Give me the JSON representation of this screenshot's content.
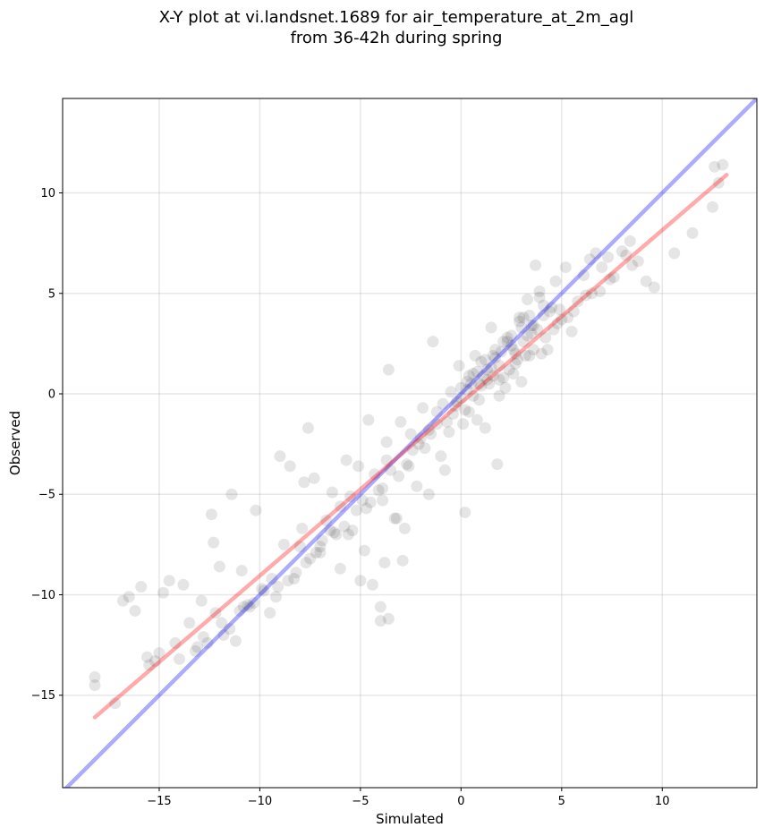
{
  "chart_data": {
    "type": "scatter",
    "title": [
      "X-Y plot at vi.landsnet.1689 for air_temperature_at_2m_agl",
      "from 36-42h during spring"
    ],
    "xlabel": "Simulated",
    "ylabel": "Observed",
    "xlim": [
      -19.8,
      14.7
    ],
    "ylim": [
      -19.6,
      14.7
    ],
    "xticks": [
      -15,
      -10,
      -5,
      0,
      5,
      10
    ],
    "yticks": [
      -15,
      -10,
      -5,
      0,
      5,
      10
    ],
    "xtick_labels": [
      "−15",
      "−10",
      "−5",
      "0",
      "5",
      "10"
    ],
    "ytick_labels": [
      "−15",
      "−10",
      "−5",
      "0",
      "5",
      "10"
    ],
    "grid": true,
    "series": [
      {
        "kind": "points",
        "color": "#000000",
        "x": [
          -18.2,
          -18.2,
          -16.8,
          -17.2,
          -16.5,
          -16.2,
          -15.9,
          -15.6,
          -15.5,
          -15.2,
          -15.0,
          -14.8,
          -14.5,
          -14.2,
          -13.8,
          -13.5,
          -13.2,
          -12.9,
          -12.4,
          -12.3,
          -12.2,
          -12.0,
          -11.8,
          -11.4,
          -11.2,
          -10.9,
          -10.5,
          -10.2,
          -9.8,
          -9.4,
          -9.0,
          -8.8,
          -8.5,
          -8.2,
          -7.9,
          -7.6,
          -7.8,
          -7.3,
          -7.0,
          -6.7,
          -6.4,
          -6.0,
          -5.7,
          -5.4,
          -5.1,
          -4.9,
          -4.6,
          -4.3,
          -4.0,
          -4.0,
          -3.8,
          -3.6,
          -3.3,
          -3.0,
          -2.7,
          -2.5,
          -2.2,
          -1.9,
          -1.6,
          -1.4,
          -1.2,
          -0.9,
          -0.7,
          -0.5,
          -0.3,
          -0.1,
          0.1,
          0.3,
          0.5,
          0.7,
          0.9,
          1.1,
          1.3,
          1.5,
          1.7,
          1.9,
          2.1,
          2.3,
          2.5,
          2.7,
          2.9,
          3.1,
          3.3,
          3.5,
          3.7,
          3.9,
          4.1,
          4.3,
          4.5,
          4.7,
          4.9,
          5.2,
          5.5,
          5.8,
          6.1,
          6.4,
          6.7,
          7.0,
          7.3,
          7.6,
          8.0,
          8.4,
          8.8,
          9.2,
          9.6,
          10.6,
          11.5,
          12.5,
          12.6,
          12.8,
          13.0,
          -3.6,
          -5.0,
          -2.9,
          -1.6,
          0.2,
          1.8,
          -4.4,
          -2.8,
          -0.8,
          0.8,
          2.6,
          -6.0,
          -4.8,
          -3.2,
          -1.0,
          1.2,
          3.0,
          -7.2,
          -5.6,
          -3.9,
          -2.1,
          0.4,
          2.2,
          4.0,
          -9.5,
          -8.0,
          -6.5,
          -5.2,
          -3.5,
          -1.8,
          0.0,
          1.6,
          3.4,
          5.0,
          -10.8,
          -9.2,
          -7.5,
          -6.2,
          -4.5,
          -2.4,
          -0.6,
          1.0,
          2.8,
          4.6,
          6.2,
          -12.8,
          -11.0,
          -9.9,
          -8.6,
          -7.0,
          -5.8,
          -4.1,
          -2.6,
          -1.2,
          0.6,
          2.4,
          4.2,
          5.6,
          7.4,
          -14.0,
          -12.6,
          -11.5,
          -10.3,
          -9.1,
          -7.7,
          -6.3,
          -4.7,
          -3.1,
          -1.5,
          0.2,
          1.9,
          3.6,
          5.3,
          6.9,
          8.5,
          -13.1,
          -11.9,
          -10.6,
          -8.3,
          -6.9,
          -5.5,
          -3.7,
          -2.0,
          -0.4,
          1.4,
          3.2,
          4.8,
          6.5,
          8.2,
          -3.9,
          -3.7,
          0.9,
          1.5,
          2.0,
          2.5,
          3.0,
          3.5,
          0.4,
          0.8,
          1.2,
          1.6,
          2.1,
          2.6,
          3.1,
          3.6,
          4.1,
          -0.2,
          0.3,
          1.0,
          1.7,
          2.3,
          2.9,
          3.4,
          3.9,
          4.4,
          0.0,
          0.6,
          1.3,
          1.9,
          2.7,
          3.3,
          3.8
        ],
        "y": [
          -14.1,
          -14.5,
          -10.3,
          -15.4,
          -10.1,
          -10.8,
          -9.6,
          -13.1,
          -13.5,
          -13.3,
          -12.9,
          -9.9,
          -9.3,
          -12.4,
          -9.5,
          -11.4,
          -12.8,
          -10.3,
          -6.0,
          -7.4,
          -10.9,
          -8.6,
          -12.0,
          -5.0,
          -12.3,
          -8.8,
          -10.6,
          -5.8,
          -9.8,
          -9.2,
          -3.1,
          -7.5,
          -3.6,
          -8.9,
          -6.7,
          -1.7,
          -4.4,
          -4.2,
          -7.6,
          -6.3,
          -4.9,
          -5.6,
          -3.3,
          -6.8,
          -3.6,
          -5.3,
          -1.3,
          -4.0,
          -10.6,
          -11.3,
          -8.4,
          1.2,
          -6.2,
          -1.4,
          -3.5,
          -2.0,
          -4.6,
          -0.7,
          -1.8,
          2.6,
          -0.9,
          -0.5,
          -1.4,
          0.1,
          -0.6,
          1.4,
          -1.5,
          0.2,
          0.5,
          1.9,
          -0.3,
          0.9,
          1.2,
          3.3,
          1.8,
          -0.1,
          0.8,
          2.6,
          2.9,
          1.5,
          3.8,
          2.6,
          4.7,
          3.4,
          6.4,
          5.1,
          3.9,
          2.2,
          4.3,
          5.6,
          4.2,
          6.3,
          3.1,
          4.6,
          5.9,
          6.7,
          7.0,
          6.3,
          6.8,
          5.8,
          7.1,
          7.6,
          6.6,
          5.6,
          5.3,
          7.0,
          8.0,
          9.3,
          11.3,
          10.5,
          11.4,
          -11.2,
          -9.3,
          -8.3,
          -5.0,
          -5.9,
          -3.5,
          -9.5,
          -6.7,
          -3.8,
          -1.3,
          1.0,
          -8.7,
          -7.8,
          -6.2,
          -3.1,
          -1.7,
          0.6,
          -7.9,
          -7.0,
          -5.3,
          -2.5,
          -0.9,
          0.3,
          2.0,
          -10.9,
          -7.6,
          -6.8,
          -5.8,
          -3.8,
          -2.7,
          -0.2,
          0.9,
          1.9,
          3.7,
          -10.6,
          -10.1,
          -8.2,
          -7.0,
          -5.4,
          -2.8,
          -1.9,
          0.4,
          1.7,
          3.2,
          4.9,
          -12.1,
          -10.8,
          -9.7,
          -9.3,
          -7.9,
          -6.6,
          -4.8,
          -3.6,
          -1.5,
          -0.1,
          1.2,
          2.8,
          4.1,
          5.7,
          -13.2,
          -12.4,
          -11.7,
          -10.4,
          -9.6,
          -8.4,
          -6.9,
          -5.7,
          -4.1,
          -2.0,
          -0.8,
          0.7,
          2.2,
          3.8,
          5.1,
          6.4,
          -12.6,
          -11.4,
          -10.5,
          -9.2,
          -7.3,
          -5.1,
          -3.3,
          -2.2,
          -1.0,
          0.5,
          1.9,
          3.5,
          5.0,
          6.9,
          -4.7,
          -2.4,
          0.5,
          1.3,
          2.1,
          2.4,
          3.3,
          3.0,
          0.9,
          1.1,
          1.7,
          1.9,
          2.6,
          2.2,
          3.8,
          3.4,
          4.4,
          -0.4,
          0.6,
          1.6,
          2.2,
          2.8,
          3.6,
          3.9,
          4.8,
          4.1,
          0.3,
          1.0,
          0.7,
          1.4,
          2.0,
          2.9,
          3.2
        ]
      },
      {
        "kind": "line",
        "color": "#0000ff",
        "name": "",
        "x": [
          -19.8,
          14.7
        ],
        "y": [
          -19.8,
          14.7
        ]
      },
      {
        "kind": "line",
        "color": "#ff0000",
        "name": "",
        "x": [
          -18.2,
          13.2
        ],
        "y": [
          -16.1,
          10.9
        ]
      }
    ]
  }
}
